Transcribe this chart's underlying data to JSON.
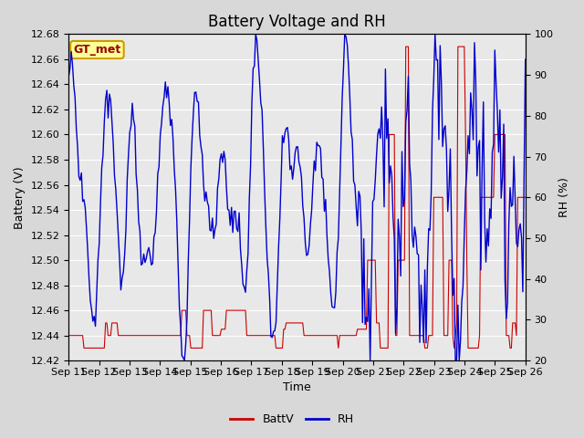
{
  "title": "Battery Voltage and RH",
  "xlabel": "Time",
  "ylabel_left": "Battery (V)",
  "ylabel_right": "RH (%)",
  "annotation": "GT_met",
  "left_ylim": [
    12.42,
    12.68
  ],
  "right_ylim": [
    20,
    100
  ],
  "left_yticks": [
    12.42,
    12.44,
    12.46,
    12.48,
    12.5,
    12.52,
    12.54,
    12.56,
    12.58,
    12.6,
    12.62,
    12.64,
    12.66,
    12.68
  ],
  "right_yticks": [
    20,
    30,
    40,
    50,
    60,
    70,
    80,
    90,
    100
  ],
  "battv_color": "#cc0000",
  "rh_color": "#0000cc",
  "background_color": "#d8d8d8",
  "plot_bg_color": "#e8e8e8",
  "grid_color": "#ffffff",
  "annotation_bg": "#ffff99",
  "annotation_border": "#cc9900",
  "annotation_text_color": "#990000",
  "legend_battv": "BattV",
  "legend_rh": "RH",
  "title_fontsize": 12,
  "axis_label_fontsize": 9,
  "tick_fontsize": 8,
  "legend_fontsize": 9,
  "x_labels": [
    "Sep 11",
    "Sep 12",
    "Sep 13",
    "Sep 14",
    "Sep 15",
    "Sep 16",
    "Sep 17",
    "Sep 18",
    "Sep 19",
    "Sep 20",
    "Sep 21",
    "Sep 22",
    "Sep 23",
    "Sep 24",
    "Sep 25",
    "Sep 26"
  ],
  "n_days": 15
}
